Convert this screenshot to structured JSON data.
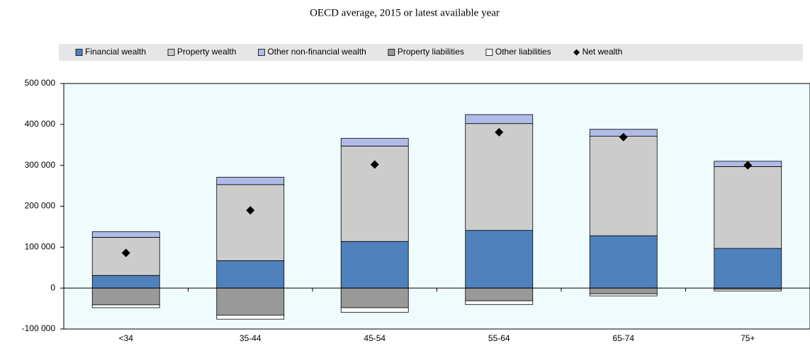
{
  "chart_data": {
    "type": "bar",
    "stacked": true,
    "title": "OECD average, 2015 or latest available year",
    "categories": [
      "<34",
      "35-44",
      "45-54",
      "55-64",
      "65-74",
      "75+"
    ],
    "series": [
      {
        "name": "Financial wealth",
        "type": "bar",
        "color": "#4f81bd",
        "values": [
          31000,
          67000,
          114000,
          141000,
          128000,
          97000
        ]
      },
      {
        "name": "Property wealth",
        "type": "bar",
        "color": "#cccccc",
        "values": [
          93000,
          186000,
          233000,
          261000,
          243000,
          200000
        ]
      },
      {
        "name": "Other non-financial wealth",
        "type": "bar",
        "color": "#b1bbe8",
        "values": [
          14000,
          18000,
          19000,
          22000,
          17000,
          13000
        ]
      },
      {
        "name": "Property liabilities",
        "type": "bar",
        "color": "#999999",
        "values": [
          -41000,
          -66000,
          -48000,
          -31000,
          -14000,
          -3000
        ]
      },
      {
        "name": "Other liabilities",
        "type": "bar",
        "color": "#ffffff",
        "values": [
          -7000,
          -10000,
          -11000,
          -9000,
          -5000,
          -4000
        ]
      },
      {
        "name": "Net wealth",
        "type": "scatter",
        "marker": "diamond",
        "color": "#000000",
        "values": [
          86000,
          190000,
          302000,
          381000,
          369000,
          300000
        ]
      }
    ],
    "ylim": [
      -100000,
      500000
    ],
    "yticks": [
      {
        "value": -100000,
        "label": "-100 000"
      },
      0,
      {
        "value": 100000,
        "label": "100 000"
      },
      {
        "value": 200000,
        "label": "200 000"
      },
      {
        "value": 300000,
        "label": "300 000"
      },
      {
        "value": 400000,
        "label": "400 000"
      },
      {
        "value": 500000,
        "label": "500 000"
      }
    ],
    "legend": "top"
  }
}
